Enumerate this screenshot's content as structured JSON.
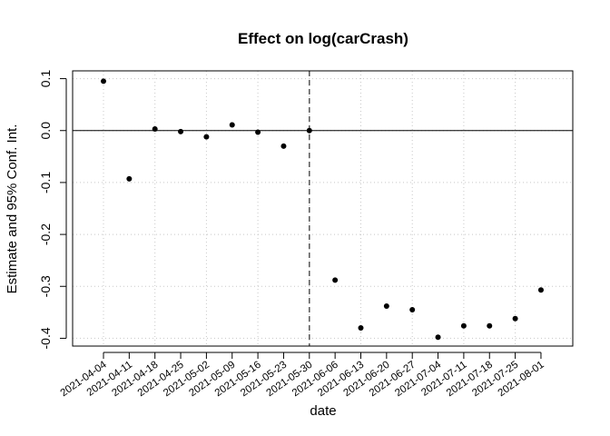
{
  "chart_data": {
    "type": "scatter",
    "title": "Effect on log(carCrash)",
    "xlabel": "date",
    "ylabel": "Estimate and 95% Conf. Int.",
    "x": [
      "2021-04-04",
      "2021-04-11",
      "2021-04-18",
      "2021-04-25",
      "2021-05-02",
      "2021-05-09",
      "2021-05-16",
      "2021-05-23",
      "2021-05-30",
      "2021-06-06",
      "2021-06-13",
      "2021-06-20",
      "2021-06-27",
      "2021-07-04",
      "2021-07-11",
      "2021-07-18",
      "2021-07-25",
      "2021-08-01"
    ],
    "y": [
      0.095,
      -0.093,
      0.003,
      -0.002,
      -0.012,
      0.011,
      -0.003,
      -0.03,
      0.0,
      -0.288,
      -0.38,
      -0.338,
      -0.345,
      -0.398,
      -0.376,
      -0.376,
      -0.362,
      -0.307
    ],
    "yticks": [
      0.1,
      0.0,
      -0.1,
      -0.2,
      -0.3,
      -0.4
    ],
    "ytick_labels": [
      "0.1",
      "0.0",
      "-0.1",
      "-0.2",
      "-0.3",
      "-0.4"
    ],
    "ylim": [
      -0.415,
      0.115
    ],
    "grid": true,
    "reference_lines": {
      "horizontal_at": 0.0,
      "vertical_at": "2021-05-30",
      "vertical_style": "dashed"
    },
    "marker_color": "#000000"
  }
}
